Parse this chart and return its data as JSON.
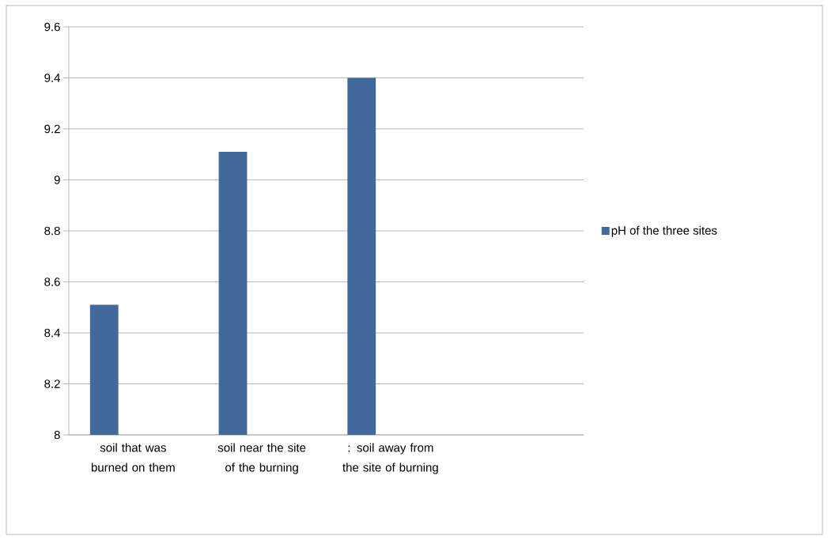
{
  "chart_data": {
    "type": "bar",
    "categories": [
      "soil that was burned on them",
      "soil near the site of the burning",
      ": soil away from the site of burning",
      null
    ],
    "series": [
      {
        "name": "pH of the three sites",
        "color": "#41699b",
        "values": [
          8.51,
          9.11,
          9.4,
          null
        ]
      }
    ],
    "ylim": [
      8,
      9.6
    ],
    "yticks": [
      8,
      8.2,
      8.4,
      8.6,
      8.8,
      9,
      9.2,
      9.4,
      9.6
    ],
    "grid": "y",
    "legend": "right"
  }
}
